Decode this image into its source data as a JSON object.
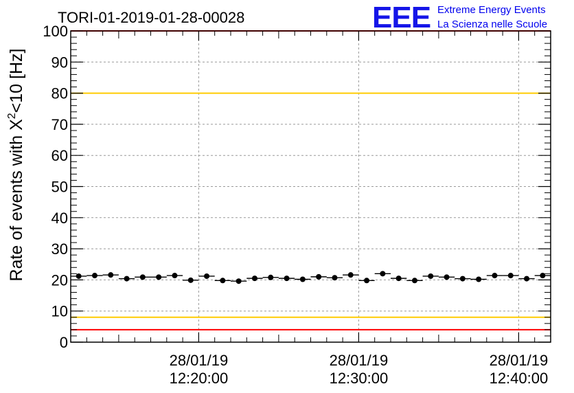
{
  "chart_data": {
    "type": "scatter",
    "title": "TORI-01-2019-01-28-00028",
    "ylabel": {
      "prefix": "Rate of events with X",
      "superscript": "2",
      "suffix": "<10 [Hz]"
    },
    "xlabel": "",
    "ylim": [
      0,
      100
    ],
    "xlim": [
      12.0,
      42.0
    ],
    "x_unit": "minutes after 12:00:00",
    "yticks": [
      0,
      10,
      20,
      30,
      40,
      50,
      60,
      70,
      80,
      90,
      100
    ],
    "xticks": [
      {
        "value": 20,
        "line1": "28/01/19",
        "line2": "12:20:00"
      },
      {
        "value": 30,
        "line1": "28/01/19",
        "line2": "12:30:00"
      },
      {
        "value": 40,
        "line1": "28/01/19",
        "line2": "12:40:00"
      }
    ],
    "grid": true,
    "bin_width": 1.0,
    "series": [
      {
        "name": "rate",
        "x": [
          12.5,
          13.5,
          14.5,
          15.5,
          16.5,
          17.5,
          18.5,
          19.5,
          20.5,
          21.5,
          22.5,
          23.5,
          24.5,
          25.5,
          26.5,
          27.5,
          28.5,
          29.5,
          30.5,
          31.5,
          32.5,
          33.5,
          34.5,
          35.5,
          36.5,
          37.5,
          38.5,
          39.5,
          40.5,
          41.5
        ],
        "y": [
          21.2,
          21.4,
          21.6,
          20.4,
          20.9,
          20.9,
          21.4,
          19.9,
          21.2,
          19.8,
          19.6,
          20.5,
          20.8,
          20.5,
          20.2,
          21.0,
          20.7,
          21.6,
          19.8,
          22.0,
          20.5,
          19.8,
          21.2,
          20.9,
          20.4,
          20.2,
          21.4,
          21.4,
          20.4,
          21.4
        ]
      }
    ],
    "reference_lines": [
      {
        "name": "upper-red-line",
        "y": 100,
        "color": "#ff0000"
      },
      {
        "name": "upper-yellow-line",
        "y": 80,
        "color": "#ffcc00"
      },
      {
        "name": "lower-yellow-line",
        "y": 8,
        "color": "#ffcc00"
      },
      {
        "name": "lower-red-line",
        "y": 4,
        "color": "#ff0000"
      }
    ]
  },
  "logo": {
    "mark": "EEE",
    "line1": "Extreme Energy Events",
    "line2": "La Scienza nelle Scuole",
    "color": "#1515e8"
  }
}
